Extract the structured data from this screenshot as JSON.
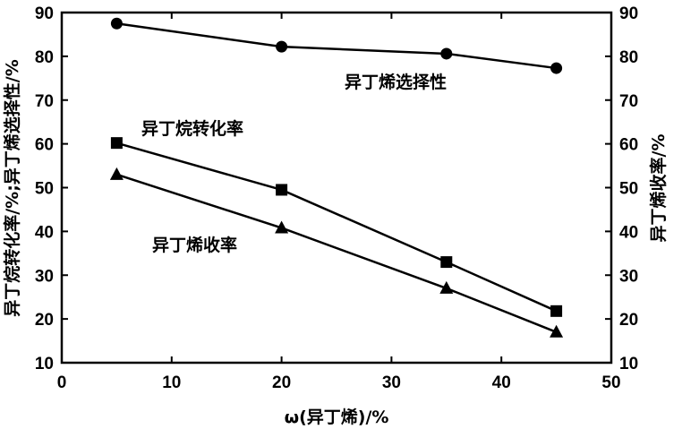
{
  "chart_data": {
    "type": "line",
    "xlabel": "ω(异丁烯)/%",
    "ylabel_left": "异丁烷转化率/%;异丁烯选择性/%",
    "ylabel_right": "异丁烯收率/%",
    "xlim": [
      0,
      50
    ],
    "ylim": [
      10,
      90
    ],
    "xticks": [
      "0",
      "10",
      "20",
      "30",
      "40",
      "50"
    ],
    "yticks": [
      "10",
      "20",
      "30",
      "40",
      "50",
      "60",
      "70",
      "80",
      "90"
    ],
    "x": [
      5,
      20,
      35,
      45
    ],
    "series": [
      {
        "name": "异丁烯选择性",
        "marker": "circle",
        "values": [
          87.5,
          82.2,
          80.6,
          77.3
        ]
      },
      {
        "name": "异丁烷转化率",
        "marker": "square",
        "values": [
          60.2,
          49.5,
          33.0,
          21.8
        ]
      },
      {
        "name": "异丁烯收率",
        "marker": "triangle",
        "values": [
          53.0,
          40.8,
          27.0,
          17.0
        ]
      }
    ],
    "grid": false
  }
}
